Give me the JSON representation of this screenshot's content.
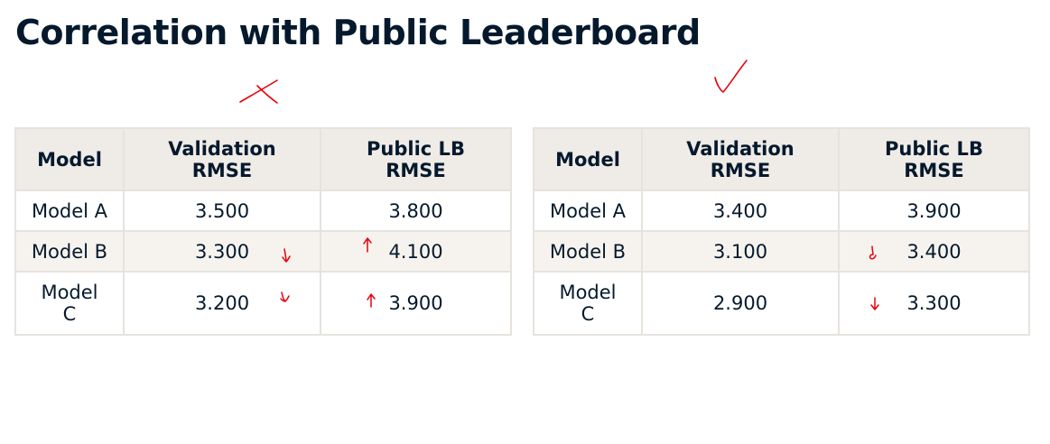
{
  "title": "Correlation with Public Leaderboard",
  "annotation_color": "#e8000b",
  "tables": [
    {
      "mark": "cross",
      "headers": [
        "Model",
        "Validation\nRMSE",
        "Public LB\nRMSE"
      ],
      "rows": [
        {
          "model": "Model A",
          "validation": "3.500",
          "public": "3.800",
          "validation_arrow": "none",
          "public_arrow": "none"
        },
        {
          "model": "Model B",
          "validation": "3.300",
          "public": "4.100",
          "validation_arrow": "down",
          "public_arrow": "up"
        },
        {
          "model": "Model\nC",
          "validation": "3.200",
          "public": "3.900",
          "validation_arrow": "down",
          "public_arrow": "up"
        }
      ]
    },
    {
      "mark": "check",
      "headers": [
        "Model",
        "Validation\nRMSE",
        "Public LB\nRMSE"
      ],
      "rows": [
        {
          "model": "Model A",
          "validation": "3.400",
          "public": "3.900",
          "validation_arrow": "none",
          "public_arrow": "none"
        },
        {
          "model": "Model B",
          "validation": "3.100",
          "public": "3.400",
          "validation_arrow": "none",
          "public_arrow": "down"
        },
        {
          "model": "Model\nC",
          "validation": "2.900",
          "public": "3.300",
          "validation_arrow": "none",
          "public_arrow": "down"
        }
      ]
    }
  ]
}
